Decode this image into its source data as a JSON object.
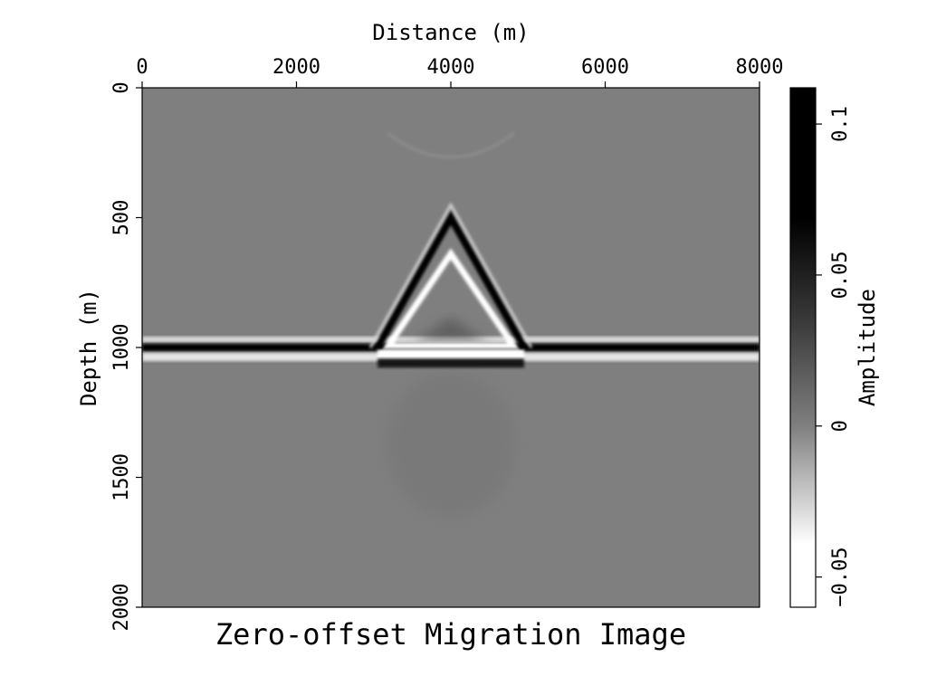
{
  "chart_data": {
    "type": "heatmap",
    "title": "Zero-offset Migration Image",
    "xlabel": "Distance (m)",
    "ylabel": "Depth (m)",
    "colorbar_label": "Amplitude",
    "x_axis_position": "top",
    "y_axis_inverted": true,
    "xlim": [
      0,
      8000
    ],
    "ylim": [
      0,
      2000
    ],
    "x_ticks": [
      0,
      2000,
      4000,
      6000,
      8000
    ],
    "y_ticks": [
      0,
      500,
      1000,
      1500,
      2000
    ],
    "colorbar": {
      "range": [
        -0.06,
        0.112
      ],
      "ticks": [
        -0.05,
        0,
        0.05,
        0.1
      ],
      "tick_labels": [
        "−0.05",
        "0",
        "0.05",
        "0.1"
      ],
      "colormap": "grayscale",
      "low_color": "#ffffff",
      "high_color": "#000000",
      "background_color": "#7f7f7f"
    },
    "features": {
      "flat_reflector": {
        "depth": 1000,
        "x_start": 0,
        "x_end": 8000
      },
      "triangle": {
        "apex": [
          4000,
          500
        ],
        "left_base": [
          3050,
          1000
        ],
        "right_base": [
          4950,
          1000
        ]
      },
      "base_band": {
        "depth": 1060,
        "x_start": 3050,
        "x_end": 4950
      }
    },
    "grid": false
  }
}
